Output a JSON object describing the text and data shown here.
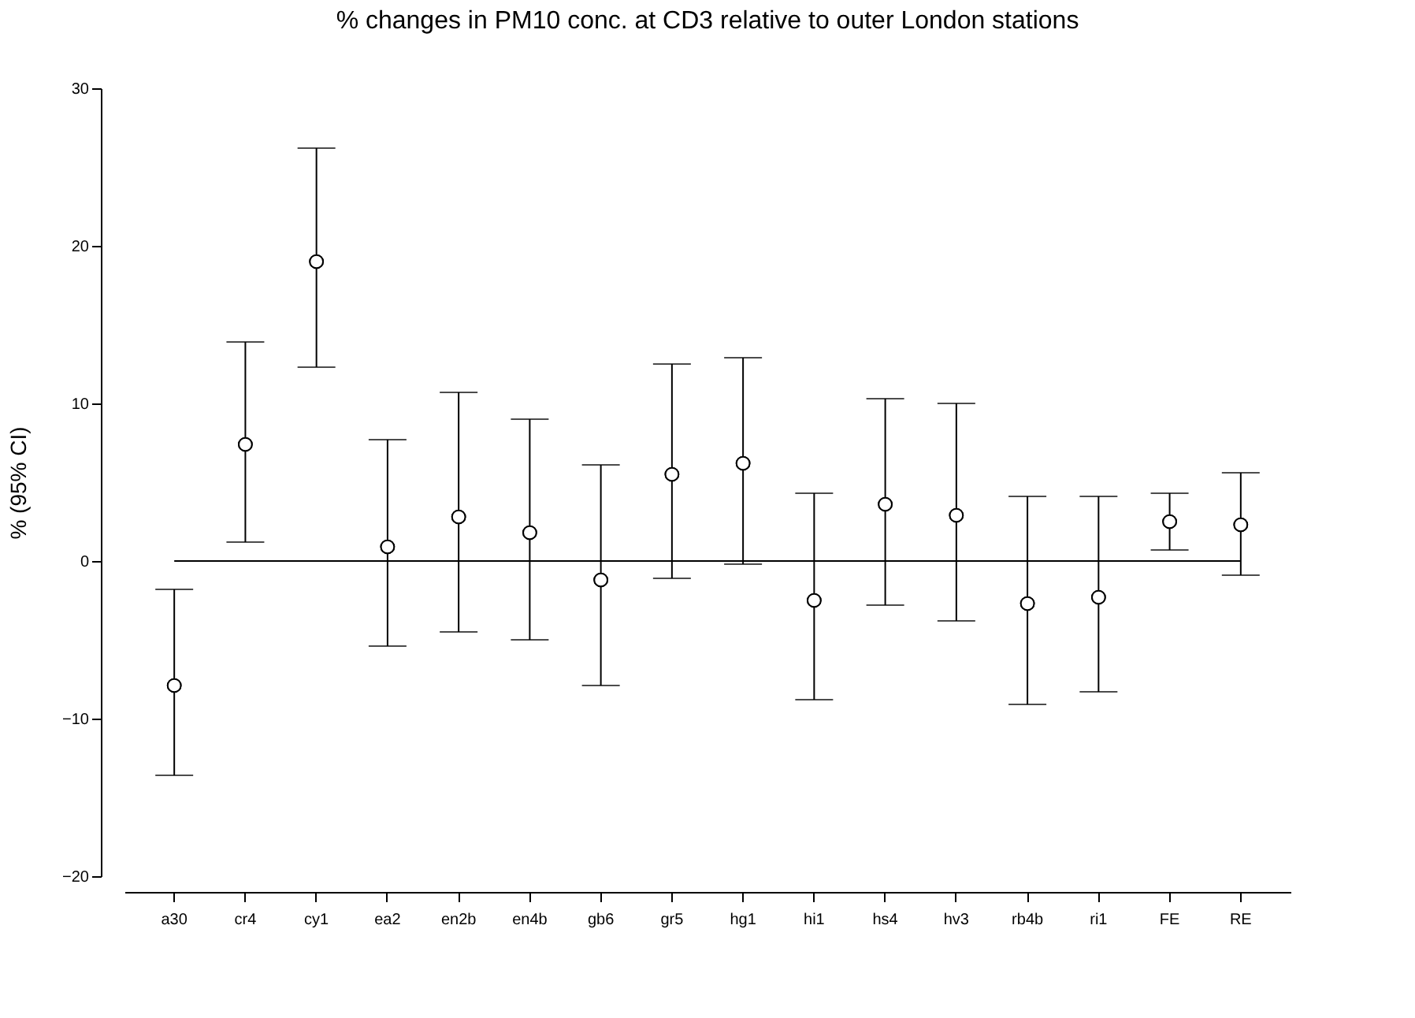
{
  "chart_data": {
    "type": "scatter",
    "title": "% changes in PM10 conc. at CD3 relative to outer London stations",
    "ylabel": "% (95% CI)",
    "categories": [
      "a30",
      "cr4",
      "cy1",
      "ea2",
      "en2b",
      "en4b",
      "gb6",
      "gr5",
      "hg1",
      "hi1",
      "hs4",
      "hv3",
      "rb4b",
      "ri1",
      "FE",
      "RE"
    ],
    "values": [
      -7.9,
      7.4,
      19.0,
      0.9,
      2.8,
      1.8,
      -1.2,
      5.5,
      6.2,
      -2.5,
      3.6,
      2.9,
      -2.7,
      -2.3,
      2.5,
      2.3
    ],
    "errors": [
      [
        -13.6,
        -1.8
      ],
      [
        1.2,
        13.9
      ],
      [
        12.3,
        26.2
      ],
      [
        -5.4,
        7.7
      ],
      [
        -4.5,
        10.7
      ],
      [
        -5.0,
        9.0
      ],
      [
        -7.9,
        6.1
      ],
      [
        -1.1,
        12.5
      ],
      [
        -0.2,
        12.9
      ],
      [
        -8.8,
        4.3
      ],
      [
        -2.8,
        10.3
      ],
      [
        -3.8,
        10.0
      ],
      [
        -9.1,
        4.1
      ],
      [
        -8.3,
        4.1
      ],
      [
        0.7,
        4.3
      ],
      [
        -0.9,
        5.6
      ]
    ],
    "color": "#000000",
    "marker": "circle",
    "ylim": [
      -20,
      30
    ],
    "yticks": [
      -20,
      -10,
      0,
      10,
      20,
      30
    ],
    "ref_lines": [
      {
        "axis": "y",
        "value": 0,
        "color": "#000000"
      }
    ],
    "grid": false
  }
}
